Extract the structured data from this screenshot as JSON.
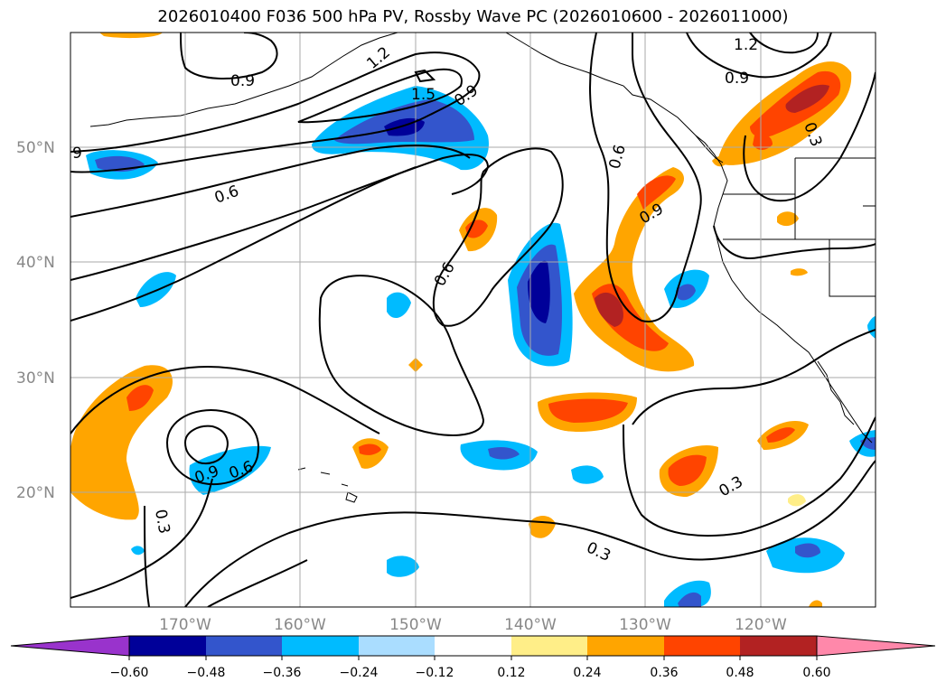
{
  "title": "2026010400 F036 500 hPa PV, Rossby Wave PC (2026010600 - 2026011000)",
  "lat_ticks": [
    {
      "label": "50°N",
      "lat": 50
    },
    {
      "label": "40°N",
      "lat": 40
    },
    {
      "label": "30°N",
      "lat": 30
    },
    {
      "label": "20°N",
      "lat": 20
    }
  ],
  "lon_ticks": [
    {
      "label": "170°W",
      "lon": -170
    },
    {
      "label": "160°W",
      "lon": -160
    },
    {
      "label": "150°W",
      "lon": -150
    },
    {
      "label": "140°W",
      "lon": -140
    },
    {
      "label": "130°W",
      "lon": -130
    },
    {
      "label": "120°W",
      "lon": -120
    }
  ],
  "contour_labels": [
    "0.9",
    "1.2",
    "1.5",
    "0.9",
    "1.2",
    "0.9",
    "9",
    "0.6",
    "0.6",
    "0.6",
    "0.9",
    "0.3",
    "0.9",
    "0.6",
    "0.3",
    "0.3",
    "0.3"
  ],
  "colorbar": {
    "ticks": [
      "−0.60",
      "−0.48",
      "−0.36",
      "−0.24",
      "−0.12",
      "0.12",
      "0.24",
      "0.36",
      "0.48",
      "0.60"
    ],
    "colors": [
      "#9933cc",
      "#000099",
      "#3355cc",
      "#00bbff",
      "#aaddff",
      "#ffffff",
      "#ffee88",
      "#ffa500",
      "#ff4400",
      "#b22222",
      "#ff88aa"
    ]
  }
}
